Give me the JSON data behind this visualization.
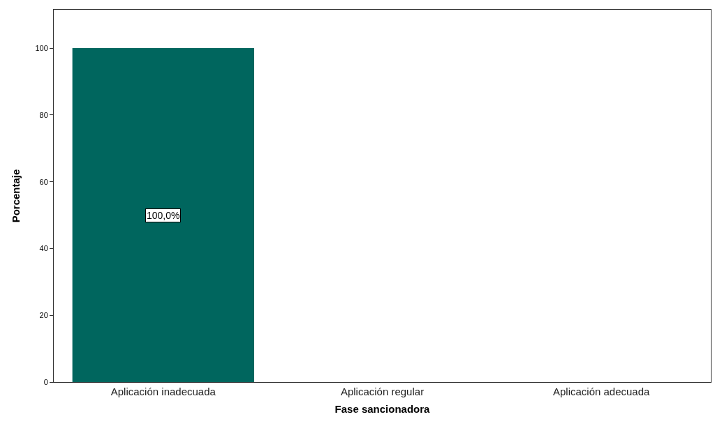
{
  "chart_data": {
    "type": "bar",
    "xlabel": "Fase sancionadora",
    "ylabel": "Porcentaje",
    "categories": [
      "Aplicación inadecuada",
      "Aplicación regular",
      "Aplicación adecuada"
    ],
    "values": [
      100,
      0,
      0
    ],
    "value_labels": [
      "100,0%",
      null,
      null
    ],
    "color": "#00665e",
    "ylim": [
      0,
      111.5
    ],
    "yticks": [
      0,
      20,
      40,
      60,
      80,
      100
    ],
    "grid": false,
    "legend": false
  }
}
